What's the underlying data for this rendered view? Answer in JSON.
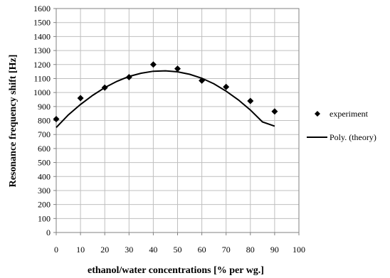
{
  "chart_data": {
    "type": "scatter",
    "title": "",
    "xlabel": "ethanol/water concentrations [% per wg.]",
    "ylabel": "Resonance frequency shift [Hz]",
    "xlim": [
      0,
      100
    ],
    "ylim": [
      0,
      1600
    ],
    "x_ticks": [
      "0",
      "10",
      "20",
      "30",
      "40",
      "50",
      "60",
      "70",
      "80",
      "90",
      "100"
    ],
    "y_ticks": [
      "0",
      "100",
      "200",
      "300",
      "400",
      "500",
      "600",
      "700",
      "800",
      "900",
      "1000",
      "1100",
      "1200",
      "1300",
      "1400",
      "1500",
      "1600"
    ],
    "grid": true,
    "legend_position": "right",
    "series": [
      {
        "name": "experiment",
        "kind": "scatter",
        "marker": "diamond",
        "color": "#000000",
        "x": [
          0,
          10,
          20,
          30,
          40,
          50,
          60,
          70,
          80,
          90
        ],
        "y": [
          810,
          960,
          1035,
          1110,
          1200,
          1170,
          1085,
          1040,
          940,
          865
        ]
      },
      {
        "name": "Poly. (theory)",
        "kind": "line",
        "color": "#000000",
        "x": [
          0,
          5,
          10,
          15,
          20,
          25,
          30,
          35,
          40,
          45,
          50,
          55,
          60,
          65,
          70,
          75,
          80,
          85,
          90
        ],
        "y": [
          750,
          840,
          915,
          980,
          1035,
          1080,
          1115,
          1138,
          1152,
          1155,
          1148,
          1130,
          1102,
          1062,
          1010,
          948,
          875,
          790,
          760
        ]
      }
    ]
  }
}
